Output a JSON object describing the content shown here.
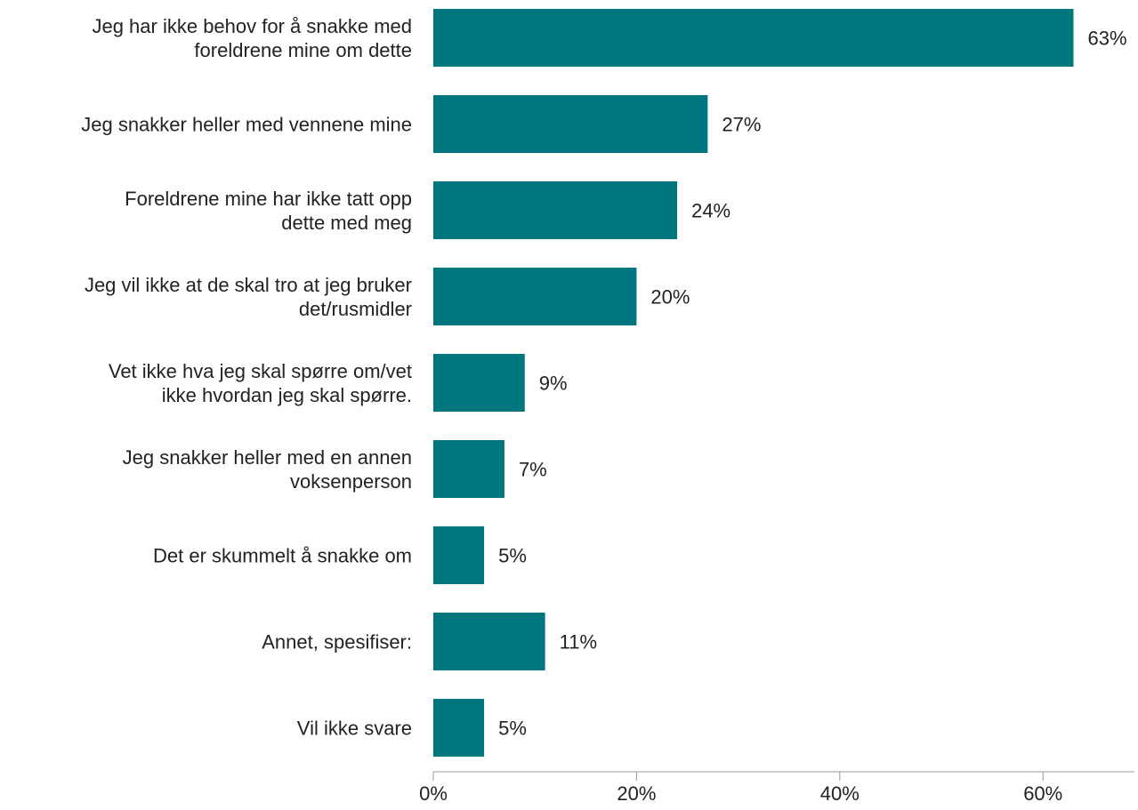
{
  "chart_data": {
    "type": "barh",
    "categories": [
      "Jeg har ikke behov for å snakke med\nforeldrene mine om dette",
      "Jeg snakker heller med vennene mine",
      "Foreldrene mine har ikke tatt opp\ndette med meg",
      "Jeg vil ikke at de skal tro at jeg bruker\ndet/rusmidler",
      "Vet ikke hva jeg skal spørre om/vet\nikke hvordan jeg skal spørre.",
      "Jeg snakker heller med en annen\nvoksenperson",
      "Det er skummelt å snakke om",
      "Annet, spesifiser:",
      "Vil ikke svare"
    ],
    "values": [
      63,
      27,
      24,
      20,
      9,
      7,
      5,
      11,
      5
    ],
    "value_labels": [
      "63%",
      "27%",
      "24%",
      "20%",
      "9%",
      "7%",
      "5%",
      "11%",
      "5%"
    ],
    "color": "#00767e",
    "xlim": [
      0,
      69
    ],
    "xticks": [
      {
        "value": 0,
        "label": "0%"
      },
      {
        "value": 20,
        "label": "20%"
      },
      {
        "value": 40,
        "label": "40%"
      },
      {
        "value": 60,
        "label": "60%"
      }
    ]
  }
}
